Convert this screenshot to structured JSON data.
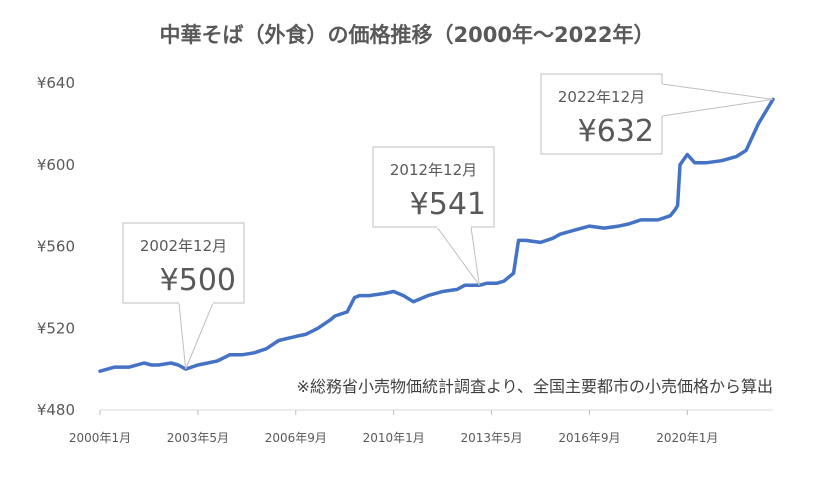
{
  "chart_data": {
    "type": "line",
    "title": "中華そば（外食）の価格推移（2000年～2022年）",
    "xlabel": "",
    "ylabel": "",
    "ylim": [
      480,
      640
    ],
    "yticks": [
      480,
      520,
      560,
      600,
      640
    ],
    "ytick_labels": [
      "¥480",
      "¥520",
      "¥560",
      "¥600",
      "¥640"
    ],
    "xlim": [
      "2000-01",
      "2022-12"
    ],
    "xtick_labels": [
      "2000年1月",
      "2003年5月",
      "2006年9月",
      "2010年1月",
      "2013年5月",
      "2016年9月",
      "2020年1月"
    ],
    "xtick_dates": [
      "2000-01",
      "2003-05",
      "2006-09",
      "2010-01",
      "2013-05",
      "2016-09",
      "2020-01"
    ],
    "grid": false,
    "legend": "none",
    "line_color": "#4472C4",
    "series": [
      {
        "x": [
          "2000-01",
          "2000-07",
          "2001-01",
          "2001-07",
          "2001-10",
          "2002-01",
          "2002-06",
          "2002-09",
          "2002-12",
          "2003-05",
          "2003-09",
          "2004-01",
          "2004-06",
          "2004-11",
          "2005-04",
          "2005-09",
          "2006-02",
          "2006-09",
          "2007-01",
          "2007-06",
          "2007-11",
          "2008-01",
          "2008-06",
          "2008-09",
          "2008-11",
          "2009-03",
          "2009-09",
          "2010-01",
          "2010-05",
          "2010-09",
          "2011-03",
          "2011-09",
          "2012-03",
          "2012-06",
          "2012-09",
          "2012-12",
          "2013-03",
          "2013-07",
          "2013-10",
          "2013-12",
          "2014-02",
          "2014-04",
          "2014-07",
          "2015-01",
          "2015-06",
          "2015-09",
          "2016-03",
          "2016-09",
          "2017-03",
          "2017-09",
          "2018-01",
          "2018-06",
          "2019-01",
          "2019-06",
          "2019-08",
          "2019-09",
          "2019-10",
          "2020-01",
          "2020-04",
          "2020-09",
          "2021-03",
          "2021-09",
          "2022-01",
          "2022-06",
          "2022-12"
        ],
        "values": [
          499,
          501,
          501,
          503,
          502,
          502,
          503,
          502,
          500,
          502,
          503,
          504,
          507,
          507,
          508,
          510,
          514,
          516,
          517,
          520,
          524,
          526,
          528,
          535,
          536,
          536,
          537,
          538,
          536,
          533,
          536,
          538,
          539,
          541,
          541,
          541,
          542,
          542,
          543,
          545,
          547,
          563,
          563,
          562,
          564,
          566,
          568,
          570,
          569,
          570,
          571,
          573,
          573,
          575,
          578,
          580,
          600,
          605,
          601,
          601,
          602,
          604,
          607,
          620,
          632
        ]
      }
    ],
    "annotations": [
      {
        "date": "2002年12月",
        "value": "¥500",
        "x": "2002-12",
        "y": 500
      },
      {
        "date": "2012年12月",
        "value": "¥541",
        "x": "2012-12",
        "y": 541
      },
      {
        "date": "2022年12月",
        "value": "¥632",
        "x": "2022-12",
        "y": 632
      }
    ],
    "source_note": "※総務省小売物価統計調査より、全国主要都市の小売価格から算出"
  }
}
